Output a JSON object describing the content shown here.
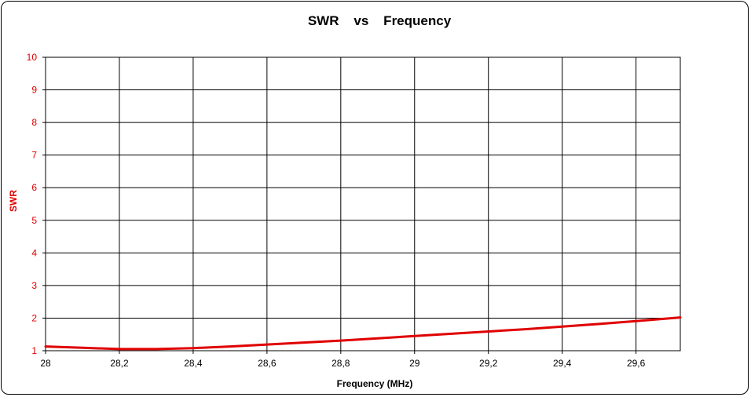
{
  "chart_data": {
    "type": "line",
    "title": "SWR    vs    Frequency",
    "xlabel": "Frequency (MHz)",
    "ylabel": "SWR",
    "xlim": [
      28,
      29.72
    ],
    "ylim": [
      1,
      10
    ],
    "x_ticks": [
      "28",
      "28,2",
      "28,4",
      "28,6",
      "28,8",
      "29",
      "29,2",
      "29,4",
      "29,6"
    ],
    "x_tick_values": [
      28,
      28.2,
      28.4,
      28.6,
      28.8,
      29,
      29.2,
      29.4,
      29.6
    ],
    "y_ticks": [
      "1",
      "2",
      "3",
      "4",
      "5",
      "6",
      "7",
      "8",
      "9",
      "10"
    ],
    "y_tick_values": [
      1,
      2,
      3,
      4,
      5,
      6,
      7,
      8,
      9,
      10
    ],
    "grid": true,
    "series": [
      {
        "color": "#e00000",
        "x": [
          28.0,
          28.1,
          28.2,
          28.3,
          28.4,
          28.5,
          28.6,
          28.7,
          28.8,
          28.9,
          29.0,
          29.1,
          29.2,
          29.3,
          29.4,
          29.5,
          29.6,
          29.72
        ],
        "y": [
          1.13,
          1.09,
          1.05,
          1.05,
          1.08,
          1.13,
          1.19,
          1.25,
          1.31,
          1.38,
          1.45,
          1.52,
          1.59,
          1.66,
          1.74,
          1.82,
          1.91,
          2.02
        ]
      }
    ],
    "colors": {
      "tick_y": "#e00000",
      "tick_x": "#000000",
      "ylabel": "#e00000",
      "grid": "#000000"
    }
  }
}
